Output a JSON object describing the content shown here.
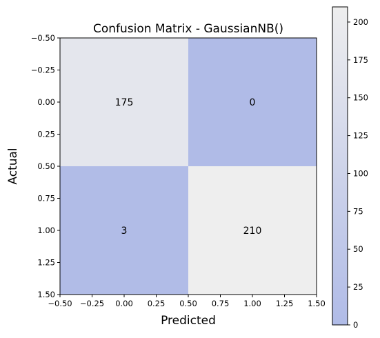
{
  "chart_data": {
    "type": "heatmap",
    "title": "Confusion Matrix - GaussianNB()",
    "xlabel": "Predicted",
    "ylabel": "Actual",
    "xlim": [
      -0.5,
      1.5
    ],
    "ylim": [
      1.5,
      -0.5
    ],
    "x_ticks": [
      "−0.50",
      "−0.25",
      "0.00",
      "0.25",
      "0.50",
      "0.75",
      "1.00",
      "1.25",
      "1.50"
    ],
    "y_ticks": [
      "−0.50",
      "−0.25",
      "0.00",
      "0.25",
      "0.50",
      "0.75",
      "1.00",
      "1.25",
      "1.50"
    ],
    "matrix": [
      [
        175,
        0
      ],
      [
        3,
        210
      ]
    ],
    "cell_labels": [
      [
        "175",
        "0"
      ],
      [
        "3",
        "210"
      ]
    ],
    "colorbar": {
      "min": 0,
      "max": 210,
      "ticks": [
        "0",
        "25",
        "50",
        "75",
        "100",
        "125",
        "150",
        "175",
        "200"
      ],
      "color_low": "#b0bbe7",
      "color_high": "#eeeeee"
    },
    "grid": false,
    "legend": "none"
  }
}
